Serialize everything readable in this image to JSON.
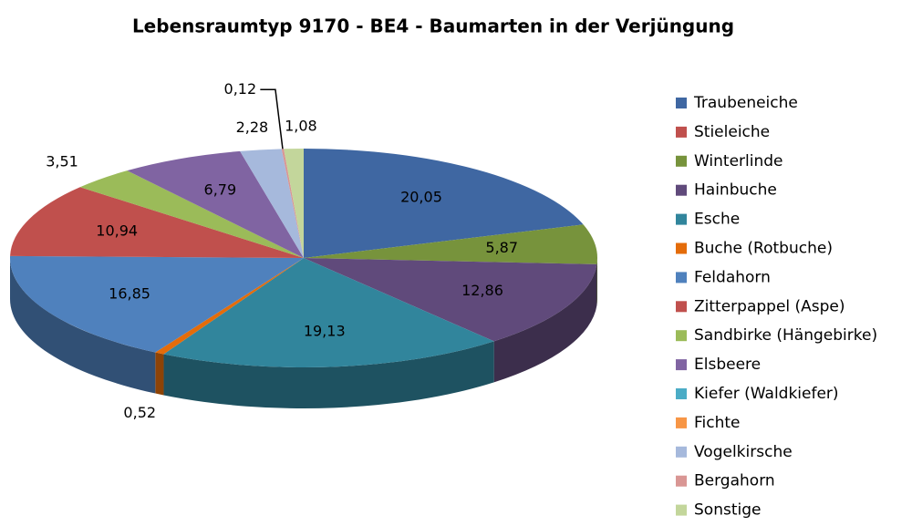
{
  "chart_data": {
    "type": "pie",
    "title": "Lebensraumtyp 9170 - BE4 - Baumarten in der Verjüngung",
    "categories": [
      "Traubeneiche",
      "Stieleiche",
      "Winterlinde",
      "Hainbuche",
      "Esche",
      "Buche (Rotbuche)",
      "Feldahorn",
      "Zitterpappel (Aspe)",
      "Sandbirke (Hängebirke)",
      "Elsbeere",
      "Kiefer (Waldkiefer)",
      "Fichte",
      "Vogelkirsche",
      "Bergahorn",
      "Sonstige"
    ],
    "values": [
      20.05,
      0,
      5.87,
      12.86,
      19.13,
      0.52,
      16.85,
      10.94,
      3.51,
      6.79,
      0,
      0,
      2.28,
      0.12,
      1.08
    ],
    "value_labels": [
      "20,05",
      null,
      "5,87",
      "12,86",
      "19,13",
      "0,52",
      "16,85",
      "10,94",
      "3,51",
      "6,79",
      null,
      null,
      "2,28",
      "0,12",
      "1,08"
    ],
    "colors": [
      "#3f67a2",
      "#c0504d",
      "#77933c",
      "#604a7b",
      "#31859c",
      "#e46c0a",
      "#4f81bd",
      "#c0504d",
      "#9bbb59",
      "#8064a2",
      "#4bacc6",
      "#f79646",
      "#a6b9dc",
      "#d99694",
      "#c3d69b"
    ],
    "legend": "right"
  }
}
